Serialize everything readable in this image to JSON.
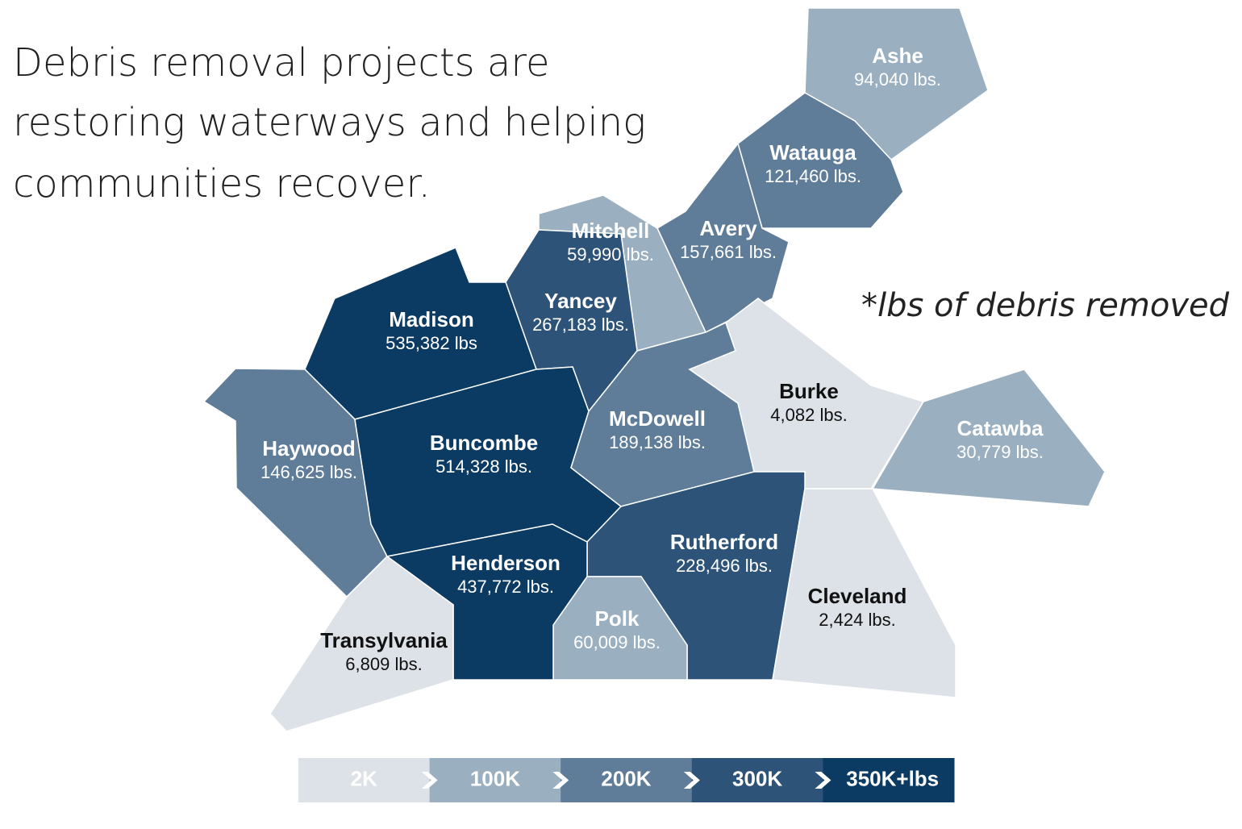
{
  "title": [
    "Debris removal projects are",
    "restoring waterways and helping",
    "communities recover."
  ],
  "note": "*lbs of debris removed",
  "counties": [
    {
      "name": "Ashe",
      "value": "94,040 lbs.",
      "color": "#9aafc0"
    },
    {
      "name": "Watauga",
      "value": "121,460 lbs.",
      "color": "#5f7d98"
    },
    {
      "name": "Avery",
      "value": "157,661 lbs.",
      "color": "#5f7d98"
    },
    {
      "name": "Mitchell",
      "value": "59,990 lbs.",
      "color": "#9aafc0"
    },
    {
      "name": "Yancey",
      "value": "267,183 lbs.",
      "color": "#2d5478"
    },
    {
      "name": "Madison",
      "value": "535,382 lbs",
      "color": "#0b3a62"
    },
    {
      "name": "Haywood",
      "value": "146,625 lbs.",
      "color": "#5f7d98"
    },
    {
      "name": "Buncombe",
      "value": "514,328 lbs.",
      "color": "#0b3a62"
    },
    {
      "name": "McDowell",
      "value": "189,138 lbs.",
      "color": "#5f7d98"
    },
    {
      "name": "Burke",
      "value": "4,082 lbs.",
      "color": "#dde2e8"
    },
    {
      "name": "Catawba",
      "value": "30,779 lbs.",
      "color": "#9aafc0"
    },
    {
      "name": "Rutherford",
      "value": "228,496 lbs.",
      "color": "#2d5478"
    },
    {
      "name": "Cleveland",
      "value": "2,424 lbs.",
      "color": "#dde2e8"
    },
    {
      "name": "Polk",
      "value": "60,009 lbs.",
      "color": "#9aafc0"
    },
    {
      "name": "Henderson",
      "value": "437,772 lbs.",
      "color": "#0b3a62"
    },
    {
      "name": "Transylvania",
      "value": "6,809 lbs.",
      "color": "#dde2e8"
    }
  ],
  "legend": [
    {
      "label": "2K",
      "color": "#dde2e8"
    },
    {
      "label": "100K",
      "color": "#9aafc0"
    },
    {
      "label": "200K",
      "color": "#5f7d98"
    },
    {
      "label": "300K",
      "color": "#2d5478"
    },
    {
      "label": "350K+lbs",
      "color": "#0b3a62"
    }
  ]
}
